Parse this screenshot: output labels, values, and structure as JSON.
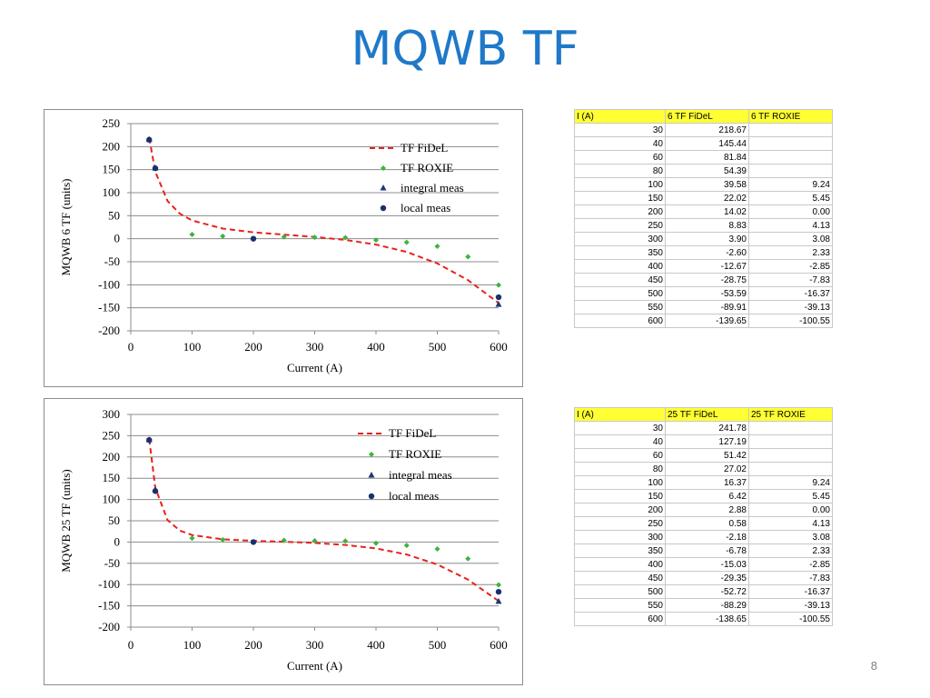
{
  "slide": {
    "title": "MQWB TF",
    "page_number": "8"
  },
  "colors": {
    "title": "#1f78c8",
    "fidel": "#e8221b",
    "roxie": "#3cb43c",
    "integral": "#1a3a78",
    "local": "#1a2f6e",
    "table_header": "#ffff33"
  },
  "icons": {
    "integral_meas": "triangle-marker",
    "local_meas": "circle-marker",
    "roxie": "diamond-marker"
  },
  "chart_data": [
    {
      "type": "scatter",
      "xlabel": "Current (A)",
      "ylabel": "MQWB 6 TF (units)",
      "xlim": [
        0,
        600
      ],
      "ylim": [
        -200,
        250
      ],
      "xticks": [
        0,
        100,
        200,
        300,
        400,
        500,
        600
      ],
      "yticks": [
        -200,
        -150,
        -100,
        -50,
        0,
        50,
        100,
        150,
        200,
        250
      ],
      "grid": "horizontal",
      "legend_position": "top-right",
      "series": [
        {
          "name": "TF FiDeL",
          "style": "dashed-line",
          "x": [
            30,
            40,
            60,
            80,
            100,
            150,
            200,
            250,
            300,
            350,
            400,
            450,
            500,
            550,
            600
          ],
          "y": [
            218.67,
            145.44,
            81.84,
            54.39,
            39.58,
            22.02,
            14.02,
            8.83,
            3.9,
            -2.6,
            -12.67,
            -28.75,
            -53.59,
            -89.91,
            -139.65
          ]
        },
        {
          "name": "TF ROXIE",
          "style": "diamond",
          "x": [
            100,
            150,
            200,
            250,
            300,
            350,
            400,
            450,
            500,
            550,
            600
          ],
          "y": [
            9.24,
            5.45,
            0.0,
            4.13,
            3.08,
            2.33,
            -2.85,
            -7.83,
            -16.37,
            -39.13,
            -100.55
          ]
        },
        {
          "name": "integral meas",
          "style": "triangle",
          "x": [
            30,
            40,
            600
          ],
          "y": [
            215,
            153,
            -143
          ]
        },
        {
          "name": "local meas",
          "style": "circle",
          "x": [
            30,
            40,
            200,
            600
          ],
          "y": [
            215,
            153,
            0,
            -127
          ]
        }
      ]
    },
    {
      "type": "scatter",
      "xlabel": "Current (A)",
      "ylabel": "MQWB 25 TF (units)",
      "xlim": [
        0,
        600
      ],
      "ylim": [
        -200,
        300
      ],
      "xticks": [
        0,
        100,
        200,
        300,
        400,
        500,
        600
      ],
      "yticks": [
        -200,
        -150,
        -100,
        -50,
        0,
        50,
        100,
        150,
        200,
        250,
        300
      ],
      "grid": "horizontal",
      "legend_position": "top-right",
      "series": [
        {
          "name": "TF FiDeL",
          "style": "dashed-line",
          "x": [
            30,
            40,
            60,
            80,
            100,
            150,
            200,
            250,
            300,
            350,
            400,
            450,
            500,
            550,
            600
          ],
          "y": [
            241.78,
            127.19,
            51.42,
            27.02,
            16.37,
            6.42,
            2.88,
            0.58,
            -2.18,
            -6.78,
            -15.03,
            -29.35,
            -52.72,
            -88.29,
            -138.65
          ]
        },
        {
          "name": "TF ROXIE",
          "style": "diamond",
          "x": [
            100,
            150,
            200,
            250,
            300,
            350,
            400,
            450,
            500,
            550,
            600
          ],
          "y": [
            9.24,
            5.45,
            0.0,
            4.13,
            3.08,
            2.33,
            -2.85,
            -7.83,
            -16.37,
            -39.13,
            -100.55
          ]
        },
        {
          "name": "integral meas",
          "style": "triangle",
          "x": [
            30,
            40,
            600
          ],
          "y": [
            240,
            122,
            -140
          ]
        },
        {
          "name": "local meas",
          "style": "circle",
          "x": [
            30,
            40,
            200,
            600
          ],
          "y": [
            240,
            120,
            0,
            -117
          ]
        }
      ]
    }
  ],
  "tables": [
    {
      "headers": [
        "I (A)",
        "6 TF FiDeL",
        "6 TF ROXIE"
      ],
      "rows": [
        [
          "30",
          "218.67",
          ""
        ],
        [
          "40",
          "145.44",
          ""
        ],
        [
          "60",
          "81.84",
          ""
        ],
        [
          "80",
          "54.39",
          ""
        ],
        [
          "100",
          "39.58",
          "9.24"
        ],
        [
          "150",
          "22.02",
          "5.45"
        ],
        [
          "200",
          "14.02",
          "0.00"
        ],
        [
          "250",
          "8.83",
          "4.13"
        ],
        [
          "300",
          "3.90",
          "3.08"
        ],
        [
          "350",
          "-2.60",
          "2.33"
        ],
        [
          "400",
          "-12.67",
          "-2.85"
        ],
        [
          "450",
          "-28.75",
          "-7.83"
        ],
        [
          "500",
          "-53.59",
          "-16.37"
        ],
        [
          "550",
          "-89.91",
          "-39.13"
        ],
        [
          "600",
          "-139.65",
          "-100.55"
        ]
      ]
    },
    {
      "headers": [
        "I (A)",
        "25 TF FiDeL",
        "25 TF ROXIE"
      ],
      "rows": [
        [
          "30",
          "241.78",
          ""
        ],
        [
          "40",
          "127.19",
          ""
        ],
        [
          "60",
          "51.42",
          ""
        ],
        [
          "80",
          "27.02",
          ""
        ],
        [
          "100",
          "16.37",
          "9.24"
        ],
        [
          "150",
          "6.42",
          "5.45"
        ],
        [
          "200",
          "2.88",
          "0.00"
        ],
        [
          "250",
          "0.58",
          "4.13"
        ],
        [
          "300",
          "-2.18",
          "3.08"
        ],
        [
          "350",
          "-6.78",
          "2.33"
        ],
        [
          "400",
          "-15.03",
          "-2.85"
        ],
        [
          "450",
          "-29.35",
          "-7.83"
        ],
        [
          "500",
          "-52.72",
          "-16.37"
        ],
        [
          "550",
          "-88.29",
          "-39.13"
        ],
        [
          "600",
          "-138.65",
          "-100.55"
        ]
      ]
    }
  ]
}
